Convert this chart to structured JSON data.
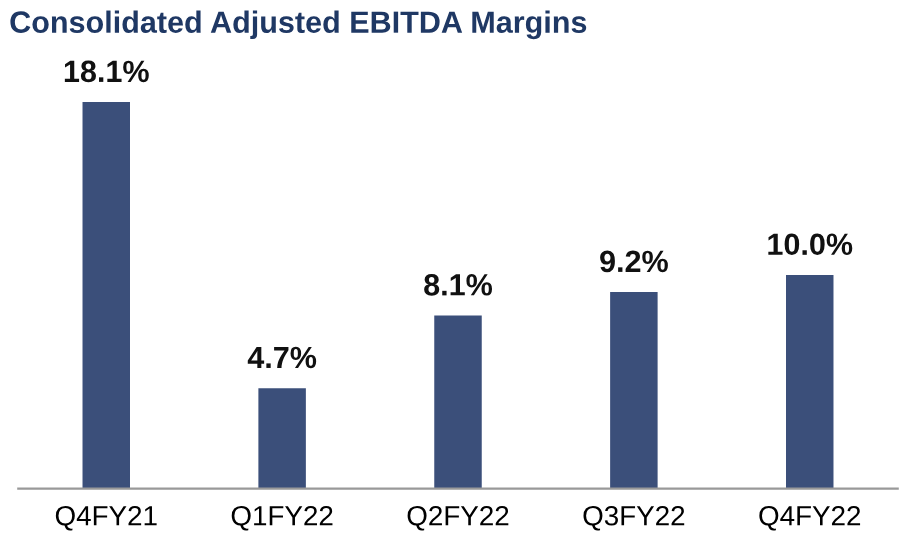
{
  "chart_data": {
    "type": "bar",
    "title": "Consolidated Adjusted EBITDA Margins",
    "categories": [
      "Q4FY21",
      "Q1FY22",
      "Q2FY22",
      "Q3FY22",
      "Q4FY22"
    ],
    "values": [
      18.1,
      4.7,
      8.1,
      9.2,
      10.0
    ],
    "value_labels": [
      "18.1%",
      "4.7%",
      "8.1%",
      "9.2%",
      "10.0%"
    ],
    "color": "#3b4f7a",
    "grid": false,
    "legend": false,
    "tick_labels": "x"
  }
}
